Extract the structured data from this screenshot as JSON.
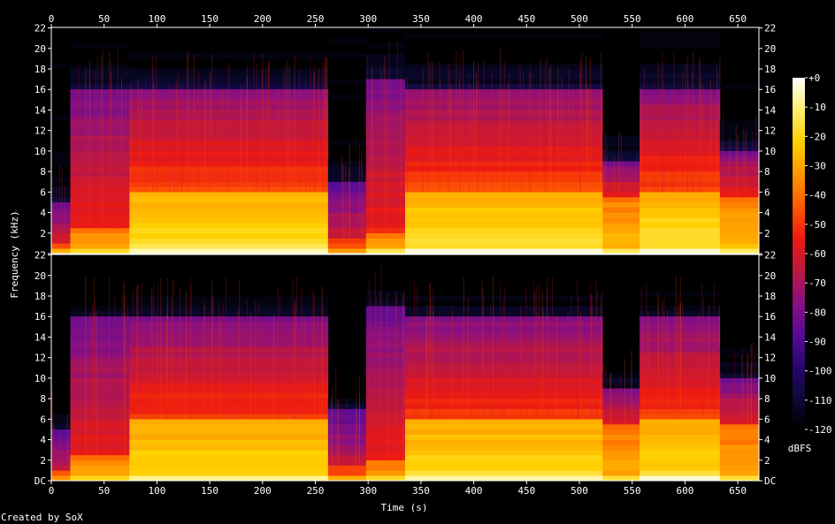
{
  "chart_data": {
    "type": "heatmap",
    "title": "",
    "xlabel": "Time (s)",
    "ylabel": "Frequency (kHz)",
    "xlim": [
      0,
      670
    ],
    "x_ticks": [
      0,
      50,
      100,
      150,
      200,
      250,
      300,
      350,
      400,
      450,
      500,
      550,
      600,
      650
    ],
    "channels": [
      {
        "ylim_khz": [
          0,
          22.05
        ],
        "y_ticks": [
          "DC",
          "2",
          "4",
          "6",
          "8",
          "10",
          "12",
          "14",
          "16",
          "18",
          "20",
          "22"
        ]
      },
      {
        "ylim_khz": [
          0,
          22.05
        ],
        "y_ticks": [
          "DC",
          "2",
          "4",
          "6",
          "8",
          "10",
          "12",
          "14",
          "16",
          "18",
          "20",
          "22"
        ]
      }
    ],
    "segments": [
      {
        "start_s": 0,
        "end_s": 18,
        "cutoff_khz": 5,
        "bright_khz": 1.2,
        "level": "low"
      },
      {
        "start_s": 18,
        "end_s": 74,
        "cutoff_khz": 16,
        "bright_khz": 2.5,
        "level": "mid"
      },
      {
        "start_s": 74,
        "end_s": 262,
        "cutoff_khz": 16,
        "bright_khz": 6,
        "level": "high"
      },
      {
        "start_s": 262,
        "end_s": 298,
        "cutoff_khz": 7,
        "bright_khz": 1.5,
        "level": "low"
      },
      {
        "start_s": 298,
        "end_s": 335,
        "cutoff_khz": 17,
        "bright_khz": 2.0,
        "level": "mid"
      },
      {
        "start_s": 335,
        "end_s": 522,
        "cutoff_khz": 16,
        "bright_khz": 6,
        "level": "high"
      },
      {
        "start_s": 522,
        "end_s": 557,
        "cutoff_khz": 9,
        "bright_khz": 5.5,
        "level": "mid"
      },
      {
        "start_s": 557,
        "end_s": 633,
        "cutoff_khz": 16,
        "bright_khz": 6,
        "level": "high"
      },
      {
        "start_s": 633,
        "end_s": 670,
        "cutoff_khz": 10,
        "bright_khz": 5.5,
        "level": "mid"
      }
    ],
    "colorbar": {
      "unit": "dBFS",
      "range": [
        -120,
        0
      ],
      "ticks": [
        "+0",
        "-10",
        "-20",
        "-30",
        "-40",
        "-50",
        "-60",
        "-70",
        "-80",
        "-90",
        "-100",
        "-110",
        "-120"
      ]
    },
    "colormap": [
      "#000000",
      "#0c0a38",
      "#2a0670",
      "#5a0c96",
      "#8a1080",
      "#c0183e",
      "#ee1a12",
      "#ff5a00",
      "#ff9800",
      "#ffd000",
      "#ffef70",
      "#ffffff"
    ],
    "footer": "Created by SoX"
  }
}
